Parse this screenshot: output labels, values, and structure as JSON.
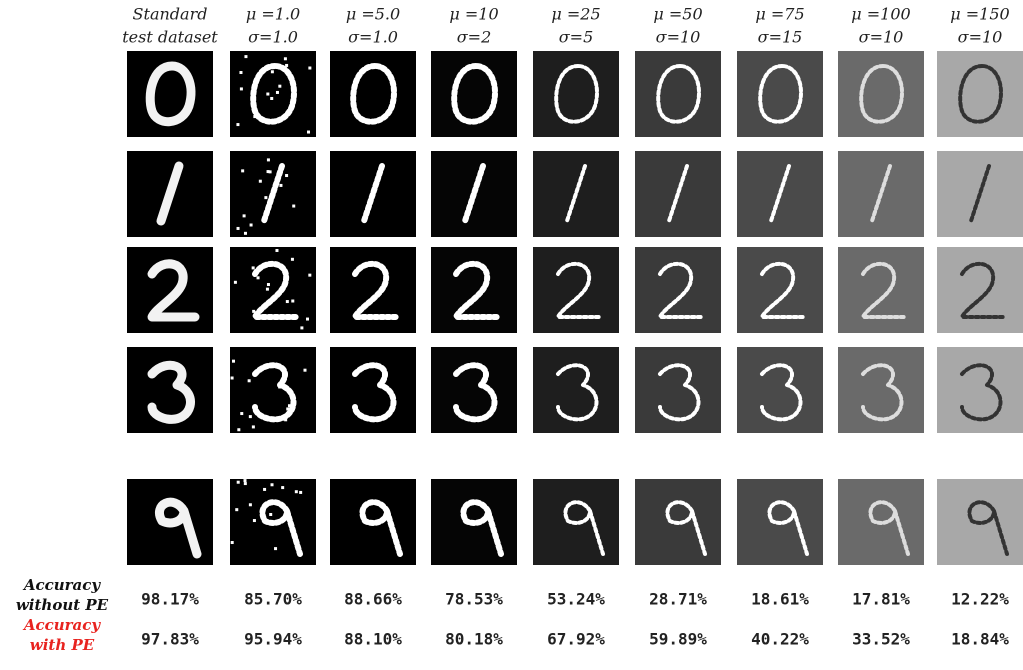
{
  "columns": [
    {
      "lines": [
        "Standard",
        "test dataset"
      ]
    },
    {
      "lines": [
        "μ =1.0",
        "σ=1.0"
      ]
    },
    {
      "lines": [
        "μ =5.0",
        "σ=1.0"
      ]
    },
    {
      "lines": [
        "μ =10",
        "σ=2"
      ]
    },
    {
      "lines": [
        "μ =25",
        "σ=5"
      ]
    },
    {
      "lines": [
        "μ =50",
        "σ=10"
      ]
    },
    {
      "lines": [
        "μ =75",
        "σ=15"
      ]
    },
    {
      "lines": [
        "μ =100",
        "σ=10"
      ]
    },
    {
      "lines": [
        "μ =150",
        "σ=10"
      ]
    }
  ],
  "rows": [
    {
      "lines": [
        "Accuracy",
        "without PE"
      ],
      "color": "#111111",
      "values": [
        "98.17%",
        "85.70%",
        "88.66%",
        "78.53%",
        "53.24%",
        "28.71%",
        "18.61%",
        "17.81%",
        "12.22%"
      ],
      "highlighted": [
        false,
        false,
        false,
        false,
        false,
        false,
        false,
        false,
        false
      ]
    },
    {
      "lines": [
        "Accuracy",
        "with PE"
      ],
      "color": "#e8231f",
      "values": [
        "97.83%",
        "95.94%",
        "88.10%",
        "80.18%",
        "67.92%",
        "59.89%",
        "40.22%",
        "33.52%",
        "18.84%"
      ],
      "highlighted": [
        false,
        true,
        false,
        true,
        true,
        true,
        true,
        true,
        true
      ]
    }
  ]
}
